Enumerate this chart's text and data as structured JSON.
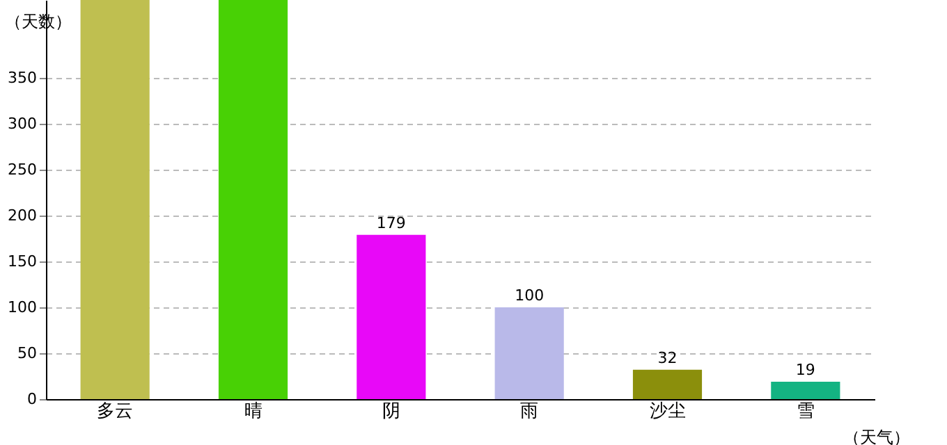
{
  "chart_data": {
    "type": "bar",
    "xlabel": "（天气）",
    "ylabel": "（天数）",
    "categories": [
      "多云",
      "晴",
      "阴",
      "雨",
      "沙尘",
      "雪"
    ],
    "values": [
      435,
      435,
      179,
      100,
      32,
      19
    ],
    "value_labels": [
      null,
      null,
      "179",
      "100",
      "32",
      "19"
    ],
    "colors": [
      "#bfbf50",
      "#48d105",
      "#e808f8",
      "#b9b9e9",
      "#8b8f0c",
      "#14b382"
    ],
    "ylim": [
      0,
      435
    ],
    "yticks": [
      0,
      50,
      100,
      150,
      200,
      250,
      300,
      350
    ],
    "grid": "y"
  }
}
